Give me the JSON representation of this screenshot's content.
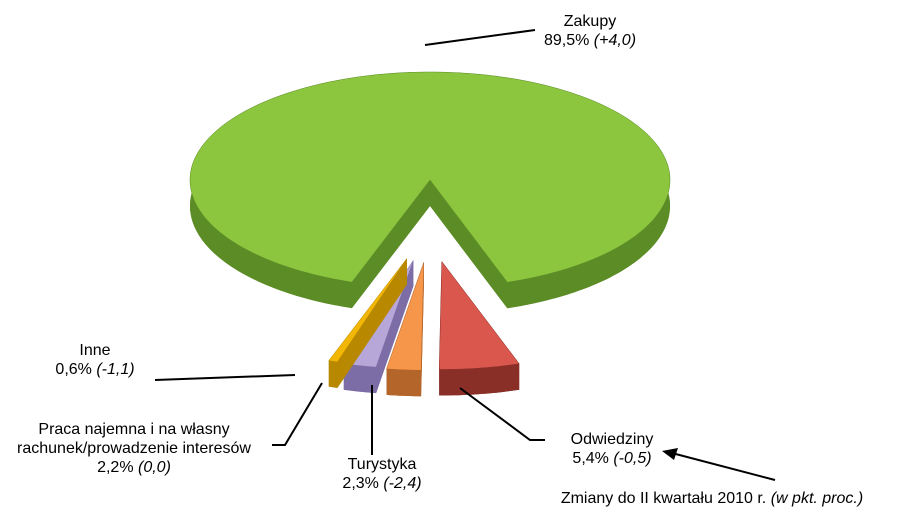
{
  "chart_data": {
    "type": "pie",
    "categories": [
      "Zakupy",
      "Odwiedziny",
      "Turystyka",
      "Praca najemna i na własny rachunek/prowadzenie interesów",
      "Inne"
    ],
    "values": [
      89.5,
      5.4,
      2.3,
      2.2,
      0.6
    ],
    "value_labels": [
      "89,5%",
      "5,4%",
      "2,3%",
      "2,2%",
      "0,6%"
    ],
    "changes": [
      4.0,
      -0.5,
      -2.4,
      0.0,
      -1.1
    ],
    "change_labels": [
      "(+4,0)",
      "(-0,5)",
      "(-2,4)",
      "(0,0)",
      "(-1,1)"
    ],
    "colors": [
      "#8cc63f",
      "#d9574c",
      "#f5964a",
      "#b6a7d8",
      "#f2b705"
    ],
    "side_colors": [
      "#5c8c26",
      "#8a2f28",
      "#b4652a",
      "#7c6da6",
      "#b88800"
    ],
    "note": "Zmiany do II kwartału 2010 r.",
    "note_unit": "(w pkt. proc.)"
  }
}
